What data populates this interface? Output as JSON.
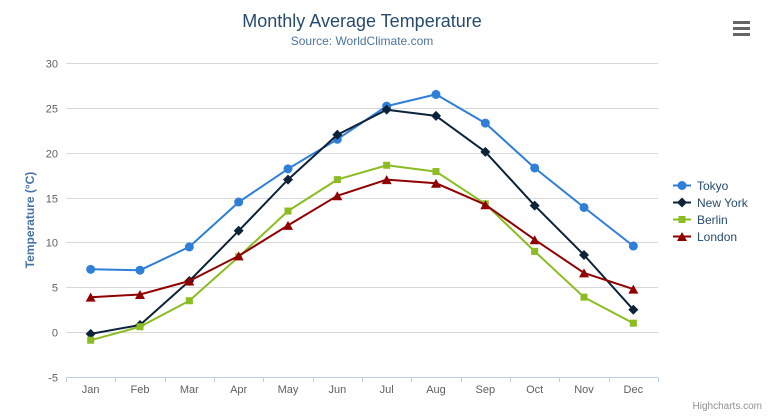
{
  "credits": "Highcharts.com",
  "menu": {
    "icon": "hamburger-icon"
  },
  "colors": {
    "title": "#274b6d",
    "subtitle": "#4d759e",
    "axis_title": "#4572a7",
    "tick_label": "#606060",
    "grid": "#d8d8d8",
    "axis_line": "#c0d0e0",
    "legend_text": "#274b6d",
    "credits": "#909090",
    "menu_icon": "#666666"
  },
  "chart_data": {
    "type": "line",
    "title": "Monthly Average Temperature",
    "subtitle": "Source: WorldClimate.com",
    "xlabel": "",
    "ylabel": "Temperature (°C)",
    "categories": [
      "Jan",
      "Feb",
      "Mar",
      "Apr",
      "May",
      "Jun",
      "Jul",
      "Aug",
      "Sep",
      "Oct",
      "Nov",
      "Dec"
    ],
    "ylim": [
      -5,
      30
    ],
    "yticks": [
      -5,
      0,
      5,
      10,
      15,
      20,
      25,
      30
    ],
    "grid": true,
    "legend_position": "right",
    "series": [
      {
        "name": "Tokyo",
        "color": "#2f7ed8",
        "marker": "circle",
        "values": [
          7.0,
          6.9,
          9.5,
          14.5,
          18.2,
          21.5,
          25.2,
          26.5,
          23.3,
          18.3,
          13.9,
          9.6
        ]
      },
      {
        "name": "New York",
        "color": "#0d233a",
        "marker": "diamond",
        "values": [
          -0.2,
          0.8,
          5.7,
          11.3,
          17.0,
          22.0,
          24.8,
          24.1,
          20.1,
          14.1,
          8.6,
          2.5
        ]
      },
      {
        "name": "Berlin",
        "color": "#8bbc21",
        "marker": "square",
        "values": [
          -0.9,
          0.6,
          3.5,
          8.4,
          13.5,
          17.0,
          18.6,
          17.9,
          14.3,
          9.0,
          3.9,
          1.0
        ]
      },
      {
        "name": "London",
        "color": "#910000",
        "marker": "triangle",
        "values": [
          3.9,
          4.2,
          5.7,
          8.5,
          11.9,
          15.2,
          17.0,
          16.6,
          14.2,
          10.3,
          6.6,
          4.8
        ]
      }
    ]
  }
}
